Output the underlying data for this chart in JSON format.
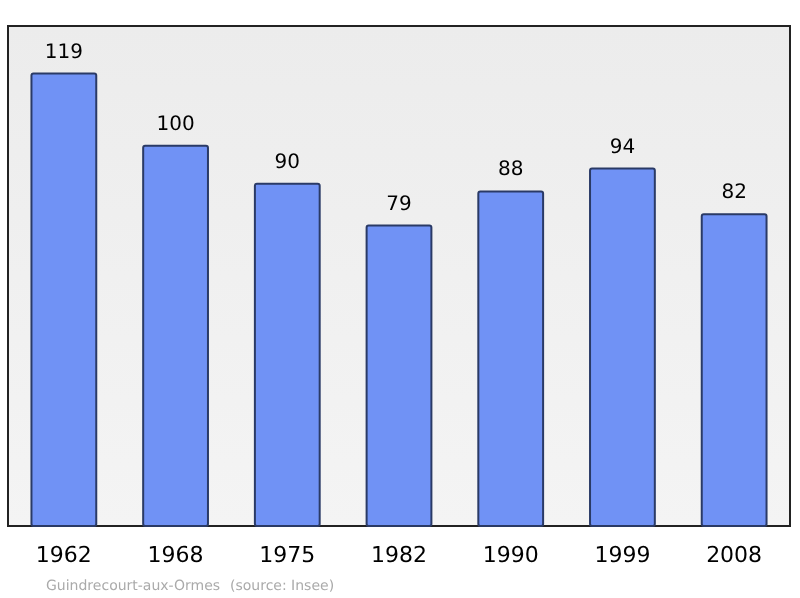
{
  "chart_data": {
    "type": "bar",
    "categories": [
      "1962",
      "1968",
      "1975",
      "1982",
      "1990",
      "1999",
      "2008"
    ],
    "values": [
      119,
      100,
      90,
      79,
      88,
      94,
      82
    ],
    "color": "#7092f5",
    "data_labels": true,
    "annotations": [
      "Guindrecourt-aux-Ormes",
      "(source: Insee)"
    ]
  }
}
